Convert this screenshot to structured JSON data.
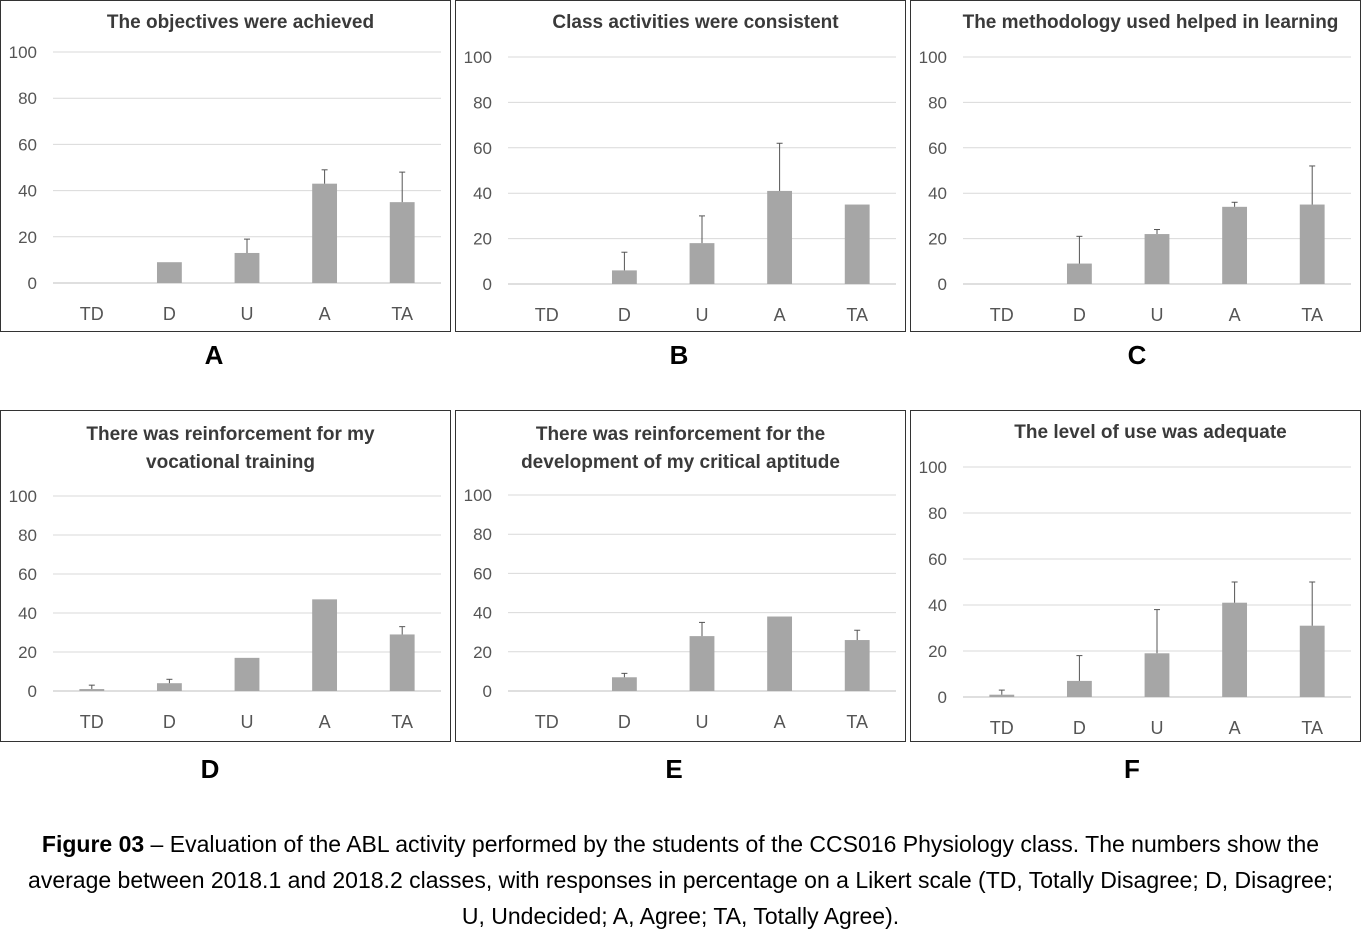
{
  "figure": {
    "caption_label": "Figure 03",
    "caption_text": " – Evaluation of the ABL activity performed by the students of the CCS016 Physiology class. The numbers show the average between 2018.1 and 2018.2 classes, with responses in percentage on a Likert scale (TD, Totally Disagree; D, Disagree; U, Undecided; A, Agree; TA, Totally Agree)."
  },
  "chart_data": [
    {
      "type": "bar",
      "panel": "A",
      "title": "The objectives were achieved",
      "categories": [
        "TD",
        "D",
        "U",
        "A",
        "TA"
      ],
      "values": [
        0,
        9,
        13,
        43,
        35
      ],
      "error": [
        0,
        0,
        6,
        6,
        13
      ],
      "ylim": [
        0,
        100
      ],
      "yticks": [
        0,
        20,
        40,
        60,
        80,
        100
      ],
      "xlabel": "",
      "ylabel": "",
      "color": "#a6a6a6"
    },
    {
      "type": "bar",
      "panel": "B",
      "title": "Class activities were consistent",
      "categories": [
        "TD",
        "D",
        "U",
        "A",
        "TA"
      ],
      "values": [
        0,
        6,
        18,
        41,
        35
      ],
      "error": [
        0,
        8,
        12,
        21,
        0
      ],
      "ylim": [
        0,
        100
      ],
      "yticks": [
        0,
        20,
        40,
        60,
        80,
        100
      ],
      "xlabel": "",
      "ylabel": "",
      "color": "#a6a6a6"
    },
    {
      "type": "bar",
      "panel": "C",
      "title": "The methodology used helped in learning",
      "categories": [
        "TD",
        "D",
        "U",
        "A",
        "TA"
      ],
      "values": [
        0,
        9,
        22,
        34,
        35
      ],
      "error": [
        0,
        12,
        2,
        2,
        17
      ],
      "ylim": [
        0,
        100
      ],
      "yticks": [
        0,
        20,
        40,
        60,
        80,
        100
      ],
      "xlabel": "",
      "ylabel": "",
      "color": "#a6a6a6"
    },
    {
      "type": "bar",
      "panel": "D",
      "title": "There was reinforcement for my vocational training",
      "categories": [
        "TD",
        "D",
        "U",
        "A",
        "TA"
      ],
      "values": [
        1,
        4,
        17,
        47,
        29
      ],
      "error": [
        2,
        2,
        0,
        0,
        4
      ],
      "ylim": [
        0,
        100
      ],
      "yticks": [
        0,
        20,
        40,
        60,
        80,
        100
      ],
      "xlabel": "",
      "ylabel": "",
      "color": "#a6a6a6"
    },
    {
      "type": "bar",
      "panel": "E",
      "title": "There was reinforcement for the development of my critical aptitude",
      "categories": [
        "TD",
        "D",
        "U",
        "A",
        "TA"
      ],
      "values": [
        0,
        7,
        28,
        38,
        26
      ],
      "error": [
        0,
        2,
        7,
        0,
        5
      ],
      "ylim": [
        0,
        100
      ],
      "yticks": [
        0,
        20,
        40,
        60,
        80,
        100
      ],
      "xlabel": "",
      "ylabel": "",
      "color": "#a6a6a6"
    },
    {
      "type": "bar",
      "panel": "F",
      "title": "The level of use was adequate",
      "categories": [
        "TD",
        "D",
        "U",
        "A",
        "TA"
      ],
      "values": [
        1,
        7,
        19,
        41,
        31
      ],
      "error": [
        2,
        11,
        19,
        9,
        19
      ],
      "ylim": [
        0,
        100
      ],
      "yticks": [
        0,
        20,
        40,
        60,
        80,
        100
      ],
      "xlabel": "",
      "ylabel": "",
      "color": "#a6a6a6"
    }
  ]
}
